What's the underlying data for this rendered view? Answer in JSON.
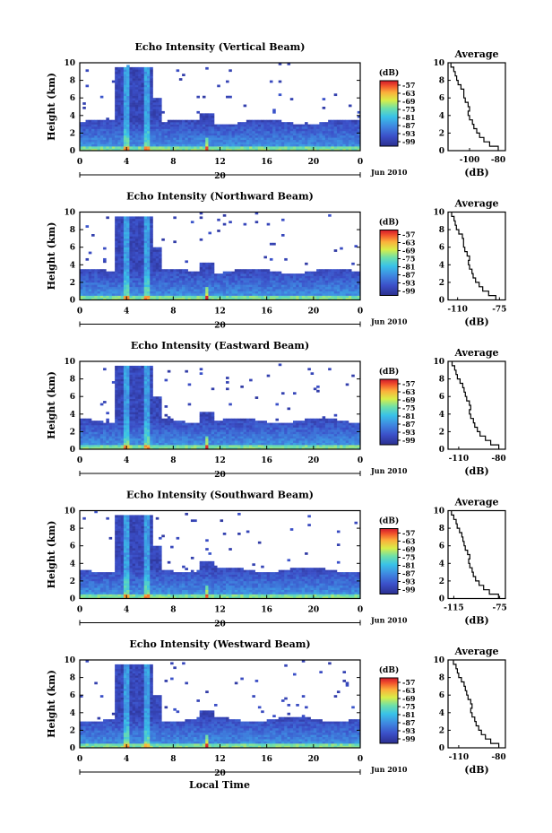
{
  "figure": {
    "xlabel": "Local Time",
    "date_label_number": "20",
    "date_label_month": "Jun 2010"
  },
  "chart_data": [
    {
      "type": "heatmap",
      "title": "Echo Intensity (Vertical Beam)",
      "ylabel": "Height (km)",
      "xlabel": "",
      "x_ticks": [
        "0",
        "4",
        "8",
        "12",
        "16",
        "20",
        "0"
      ],
      "y_ticks": [
        "0",
        "2",
        "4",
        "6",
        "8",
        "10"
      ],
      "xlim": [
        0,
        24
      ],
      "ylim": [
        0,
        10
      ],
      "colorbar_label": "(dB)",
      "colorbar_ticks": [
        "-57",
        "-63",
        "-69",
        "-75",
        "-81",
        "-87",
        "-93",
        "-99"
      ],
      "average_profile": {
        "title": "Average",
        "xlabel": "(dB)",
        "x_ticks": [
          "-100",
          "-80"
        ],
        "xlim": [
          -115,
          -75
        ],
        "height": [
          0.25,
          0.75,
          1.25,
          1.75,
          2.25,
          2.75,
          3.25,
          3.75,
          4.25,
          4.75,
          5.25,
          5.75,
          6.25,
          6.75,
          7.25,
          7.75,
          8.25,
          8.75,
          9.25,
          9.75
        ],
        "values": [
          -80,
          -86,
          -90,
          -93,
          -95,
          -97,
          -98,
          -100,
          -101,
          -100,
          -101,
          -103,
          -104,
          -104,
          -106,
          -108,
          -109,
          -110,
          -111,
          -113
        ]
      }
    },
    {
      "type": "heatmap",
      "title": "Echo Intensity (Northward Beam)",
      "ylabel": "Height (km)",
      "xlabel": "",
      "x_ticks": [
        "0",
        "4",
        "8",
        "12",
        "16",
        "20",
        "0"
      ],
      "y_ticks": [
        "0",
        "2",
        "4",
        "6",
        "8",
        "10"
      ],
      "xlim": [
        0,
        24
      ],
      "ylim": [
        0,
        10
      ],
      "colorbar_label": "(dB)",
      "colorbar_ticks": [
        "-57",
        "-63",
        "-69",
        "-75",
        "-81",
        "-87",
        "-93",
        "-99"
      ],
      "average_profile": {
        "title": "Average",
        "xlabel": "(dB)",
        "x_ticks": [
          "-110",
          "-75"
        ],
        "xlim": [
          -118,
          -70
        ],
        "height": [
          0.25,
          0.75,
          1.25,
          1.75,
          2.25,
          2.75,
          3.25,
          3.75,
          4.25,
          4.75,
          5.25,
          5.75,
          6.25,
          6.75,
          7.25,
          7.75,
          8.25,
          8.75,
          9.25,
          9.75
        ],
        "values": [
          -78,
          -84,
          -89,
          -92,
          -95,
          -97,
          -98,
          -100,
          -101,
          -100,
          -102,
          -104,
          -105,
          -105,
          -106,
          -109,
          -111,
          -112,
          -113,
          -115
        ]
      }
    },
    {
      "type": "heatmap",
      "title": "Echo Intensity (Eastward Beam)",
      "ylabel": "Height (km)",
      "xlabel": "",
      "x_ticks": [
        "0",
        "4",
        "8",
        "12",
        "16",
        "20",
        "0"
      ],
      "y_ticks": [
        "0",
        "2",
        "4",
        "6",
        "8",
        "10"
      ],
      "xlim": [
        0,
        24
      ],
      "ylim": [
        0,
        10
      ],
      "colorbar_label": "(dB)",
      "colorbar_ticks": [
        "-57",
        "-63",
        "-69",
        "-75",
        "-81",
        "-87",
        "-93",
        "-99"
      ],
      "average_profile": {
        "title": "Average",
        "xlabel": "(dB)",
        "x_ticks": [
          "-110",
          "-80"
        ],
        "xlim": [
          -118,
          -75
        ],
        "height": [
          0.25,
          0.75,
          1.25,
          1.75,
          2.25,
          2.75,
          3.25,
          3.75,
          4.25,
          4.75,
          5.25,
          5.75,
          6.25,
          6.75,
          7.25,
          7.75,
          8.25,
          8.75,
          9.25,
          9.75
        ],
        "values": [
          -80,
          -86,
          -90,
          -94,
          -96,
          -98,
          -99,
          -101,
          -102,
          -101,
          -102,
          -104,
          -105,
          -106,
          -107,
          -109,
          -111,
          -112,
          -113,
          -115
        ]
      }
    },
    {
      "type": "heatmap",
      "title": "Echo Intensity (Southward Beam)",
      "ylabel": "Height (km)",
      "xlabel": "",
      "x_ticks": [
        "0",
        "4",
        "8",
        "12",
        "16",
        "20",
        "0"
      ],
      "y_ticks": [
        "0",
        "2",
        "4",
        "6",
        "8",
        "10"
      ],
      "xlim": [
        0,
        24
      ],
      "ylim": [
        0,
        10
      ],
      "colorbar_label": "(dB)",
      "colorbar_ticks": [
        "-57",
        "-63",
        "-69",
        "-75",
        "-81",
        "-87",
        "-93",
        "-99"
      ],
      "average_profile": {
        "title": "Average",
        "xlabel": "(dB)",
        "x_ticks": [
          "-115",
          "-75"
        ],
        "xlim": [
          -120,
          -70
        ],
        "height": [
          0.25,
          0.75,
          1.25,
          1.75,
          2.25,
          2.75,
          3.25,
          3.75,
          4.25,
          4.75,
          5.25,
          5.75,
          6.25,
          6.75,
          7.25,
          7.75,
          8.25,
          8.75,
          9.25,
          9.75
        ],
        "values": [
          -76,
          -84,
          -89,
          -93,
          -96,
          -98,
          -99,
          -101,
          -102,
          -101,
          -103,
          -105,
          -106,
          -107,
          -108,
          -110,
          -112,
          -113,
          -115,
          -117
        ]
      }
    },
    {
      "type": "heatmap",
      "title": "Echo Intensity (Westward Beam)",
      "ylabel": "Height (km)",
      "xlabel": "Local Time",
      "x_ticks": [
        "0",
        "4",
        "8",
        "12",
        "16",
        "20",
        "0"
      ],
      "y_ticks": [
        "0",
        "2",
        "4",
        "6",
        "8",
        "10"
      ],
      "xlim": [
        0,
        24
      ],
      "ylim": [
        0,
        10
      ],
      "colorbar_label": "(dB)",
      "colorbar_ticks": [
        "-57",
        "-63",
        "-69",
        "-75",
        "-81",
        "-87",
        "-93",
        "-99"
      ],
      "average_profile": {
        "title": "Average",
        "xlabel": "(dB)",
        "x_ticks": [
          "-110",
          "-80"
        ],
        "xlim": [
          -118,
          -75
        ],
        "height": [
          0.25,
          0.75,
          1.25,
          1.75,
          2.25,
          2.75,
          3.25,
          3.75,
          4.25,
          4.75,
          5.25,
          5.75,
          6.25,
          6.75,
          7.25,
          7.75,
          8.25,
          8.75,
          9.25,
          9.75
        ],
        "values": [
          -80,
          -86,
          -90,
          -93,
          -95,
          -97,
          -98,
          -100,
          -101,
          -100,
          -101,
          -103,
          -104,
          -105,
          -106,
          -108,
          -110,
          -111,
          -112,
          -114
        ]
      }
    }
  ]
}
